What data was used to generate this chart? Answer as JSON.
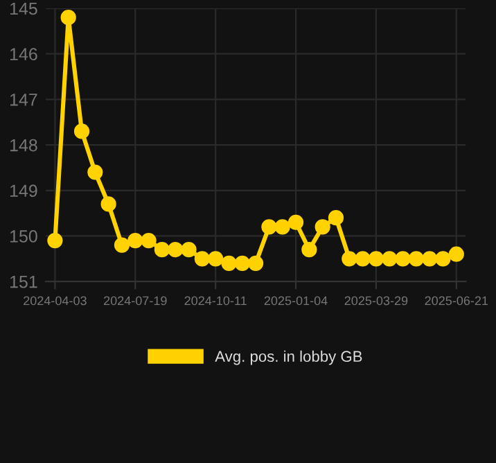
{
  "chart_data": {
    "type": "line",
    "categories": [
      "2024-04-03",
      null,
      null,
      null,
      null,
      null,
      "2024-07-19",
      null,
      null,
      null,
      null,
      null,
      "2024-10-11",
      null,
      null,
      null,
      null,
      null,
      "2025-01-04",
      null,
      null,
      null,
      null,
      null,
      "2025-03-29",
      null,
      null,
      null,
      null,
      null,
      "2025-06-21"
    ],
    "series": [
      {
        "name": "Avg. pos. in lobby GB",
        "color": "#ffd200",
        "values": [
          150.1,
          145.2,
          147.7,
          148.6,
          149.3,
          150.2,
          150.1,
          150.1,
          150.3,
          150.3,
          150.3,
          150.5,
          150.5,
          150.6,
          150.6,
          150.6,
          149.8,
          149.8,
          149.7,
          150.3,
          149.8,
          149.6,
          150.5,
          150.5,
          150.5,
          150.5,
          150.5,
          150.5,
          150.5,
          150.5,
          150.4
        ]
      }
    ],
    "ylim": [
      151,
      145
    ],
    "yticks": [
      145,
      146,
      147,
      148,
      149,
      150,
      151
    ],
    "grid": true,
    "legend": "bottom",
    "marker": "circle",
    "line_style": "solid"
  }
}
